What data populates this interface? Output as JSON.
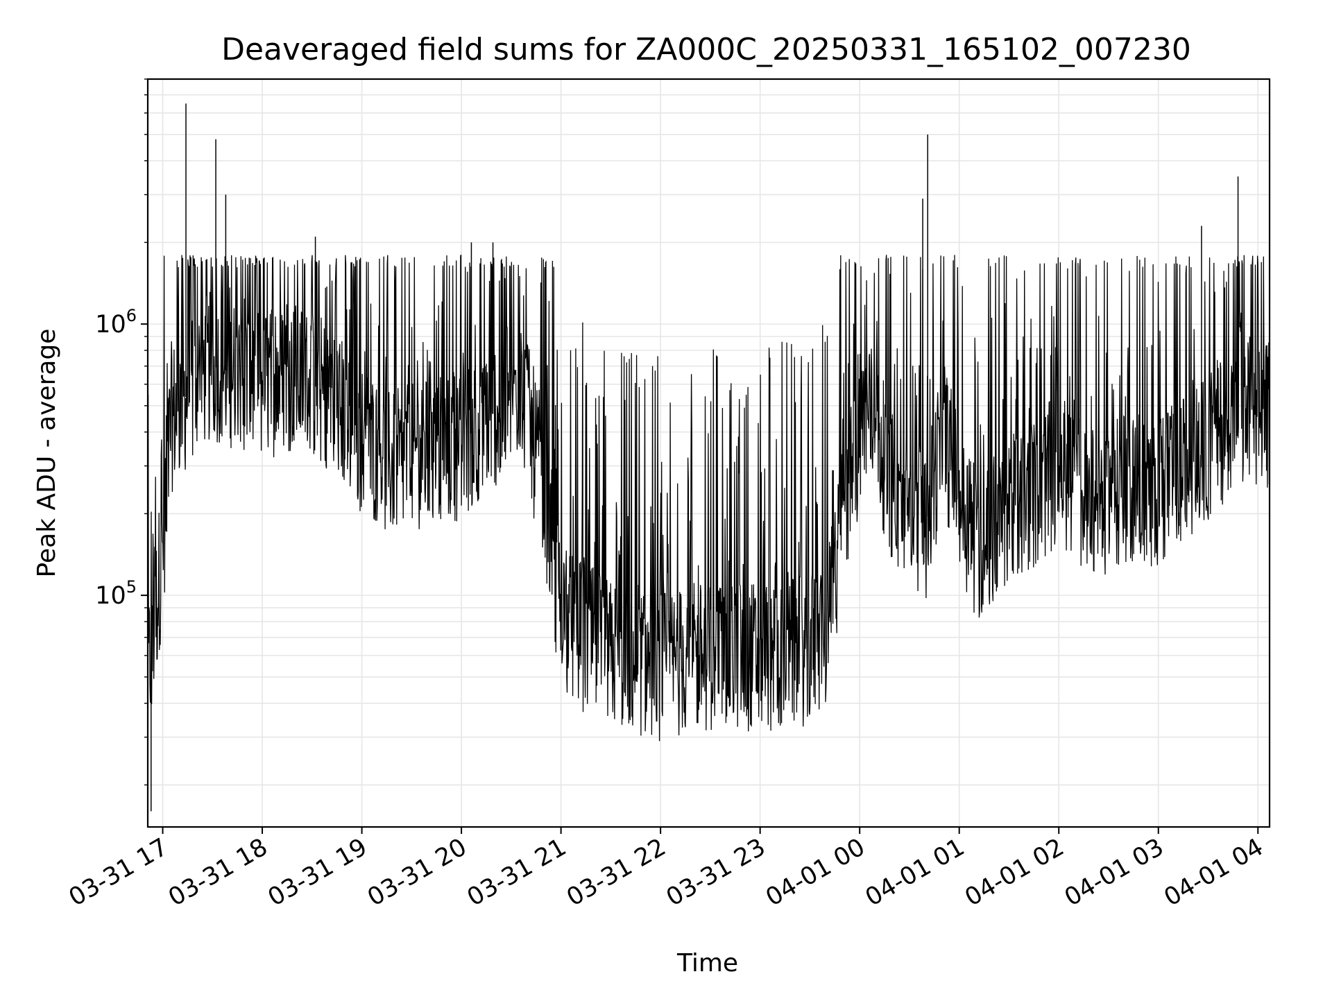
{
  "chart_data": {
    "type": "line",
    "title": "Deaveraged field sums for ZA000C_20250331_165102_007230",
    "xlabel": "Time",
    "ylabel": "Peak ADU - average",
    "y_scale": "log",
    "grid": true,
    "line_color": "#000000",
    "grid_color": "#e6e6e6",
    "xlim": [
      "2025-03-31 16:51",
      "2025-04-01 04:07"
    ],
    "ylim": [
      14000,
      8000000
    ],
    "x_ticks": [
      {
        "time": "2025-03-31 17:00",
        "label": "03-31 17"
      },
      {
        "time": "2025-03-31 18:00",
        "label": "03-31 18"
      },
      {
        "time": "2025-03-31 19:00",
        "label": "03-31 19"
      },
      {
        "time": "2025-03-31 20:00",
        "label": "03-31 20"
      },
      {
        "time": "2025-03-31 21:00",
        "label": "03-31 21"
      },
      {
        "time": "2025-03-31 22:00",
        "label": "03-31 22"
      },
      {
        "time": "2025-03-31 23:00",
        "label": "03-31 23"
      },
      {
        "time": "2025-04-01 00:00",
        "label": "04-01 00"
      },
      {
        "time": "2025-04-01 01:00",
        "label": "04-01 01"
      },
      {
        "time": "2025-04-01 02:00",
        "label": "04-01 02"
      },
      {
        "time": "2025-04-01 03:00",
        "label": "04-01 03"
      },
      {
        "time": "2025-04-01 04:00",
        "label": "04-01 04"
      }
    ],
    "y_ticks": [
      {
        "value": 100000,
        "base": "10",
        "exponent": "5"
      },
      {
        "value": 1000000,
        "base": "10",
        "exponent": "6"
      }
    ],
    "series": [
      {
        "x": [
          "2025-03-31 16:51",
          "2025-03-31 16:55",
          "2025-03-31 17:00",
          "2025-03-31 17:05",
          "2025-03-31 17:15",
          "2025-03-31 17:20",
          "2025-03-31 17:30",
          "2025-03-31 17:45",
          "2025-03-31 18:00",
          "2025-03-31 18:20",
          "2025-03-31 18:40",
          "2025-03-31 19:00",
          "2025-03-31 19:20",
          "2025-03-31 19:40",
          "2025-03-31 20:00",
          "2025-03-31 20:10",
          "2025-03-31 20:25",
          "2025-03-31 20:35",
          "2025-03-31 20:50",
          "2025-03-31 21:00",
          "2025-03-31 21:30",
          "2025-03-31 22:00",
          "2025-03-31 22:30",
          "2025-03-31 23:00",
          "2025-03-31 23:25",
          "2025-03-31 23:40",
          "2025-03-31 23:50",
          "2025-04-01 00:05",
          "2025-04-01 00:20",
          "2025-04-01 00:40",
          "2025-04-01 00:50",
          "2025-04-01 01:10",
          "2025-04-01 01:30",
          "2025-04-01 01:50",
          "2025-04-01 02:00",
          "2025-04-01 02:20",
          "2025-04-01 02:40",
          "2025-04-01 03:00",
          "2025-04-01 03:20",
          "2025-04-01 03:40",
          "2025-04-01 04:00",
          "2025-04-01 04:07"
        ],
        "y": [
          50000,
          80000,
          150000,
          450000,
          550000,
          650000,
          700000,
          650000,
          600000,
          650000,
          550000,
          380000,
          300000,
          340000,
          360000,
          420000,
          500000,
          600000,
          250000,
          80000,
          60000,
          55000,
          60000,
          60000,
          62000,
          70000,
          200000,
          500000,
          250000,
          180000,
          400000,
          150000,
          200000,
          250000,
          300000,
          200000,
          250000,
          240000,
          300000,
          420000,
          480000,
          450000
        ]
      }
    ],
    "spikes": [
      {
        "time": "2025-03-31 17:14",
        "value": 6500000
      },
      {
        "time": "2025-03-31 17:32",
        "value": 4800000
      },
      {
        "time": "2025-03-31 17:38",
        "value": 3000000
      },
      {
        "time": "2025-03-31 18:32",
        "value": 2100000
      },
      {
        "time": "2025-03-31 20:06",
        "value": 2000000
      },
      {
        "time": "2025-03-31 20:19",
        "value": 2000000
      },
      {
        "time": "2025-04-01 00:41",
        "value": 5000000
      },
      {
        "time": "2025-04-01 00:38",
        "value": 2900000
      },
      {
        "time": "2025-04-01 03:26",
        "value": 2300000
      },
      {
        "time": "2025-04-01 03:48",
        "value": 3500000
      },
      {
        "time": "2025-03-31 16:53",
        "value": 16000
      }
    ]
  }
}
